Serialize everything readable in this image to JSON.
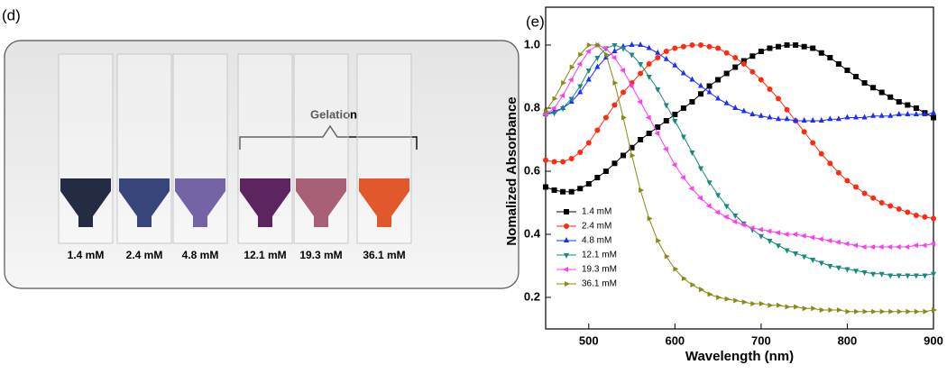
{
  "panel_d": {
    "label": "(d)",
    "annotation": "Gelation",
    "vial_labels": [
      "1.4 mM",
      "2.4 mM",
      "4.8 mM",
      "12.1 mM",
      "19.3 mM",
      "36.1 mM"
    ]
  },
  "chart_data": {
    "type": "line",
    "panel_label": "(e)",
    "x_label": "Wavelength (nm)",
    "y_label": "Nomalized Absorbance",
    "x": [
      450,
      460,
      470,
      480,
      490,
      500,
      510,
      520,
      530,
      540,
      550,
      560,
      570,
      580,
      590,
      600,
      610,
      620,
      630,
      640,
      650,
      660,
      670,
      680,
      690,
      700,
      710,
      720,
      730,
      740,
      750,
      760,
      770,
      780,
      790,
      800,
      810,
      820,
      830,
      840,
      850,
      860,
      870,
      880,
      890,
      900
    ],
    "xlim": [
      450,
      900
    ],
    "xticks": [
      500,
      600,
      700,
      800,
      900
    ],
    "ylim": [
      0.1,
      1.12
    ],
    "yticks": [
      0.2,
      0.4,
      0.6,
      0.8,
      {
        "value": 1,
        "label": "1.0"
      }
    ],
    "legend": "lower left",
    "series": [
      {
        "name": "1.4 mM",
        "color": "#000000",
        "marker": "square",
        "values": [
          0.55,
          0.54,
          0.535,
          0.535,
          0.545,
          0.56,
          0.58,
          0.6,
          0.625,
          0.65,
          0.675,
          0.7,
          0.72,
          0.74,
          0.76,
          0.78,
          0.8,
          0.82,
          0.845,
          0.87,
          0.89,
          0.91,
          0.93,
          0.95,
          0.965,
          0.98,
          0.99,
          0.995,
          1.0,
          1.0,
          0.995,
          0.99,
          0.975,
          0.96,
          0.94,
          0.92,
          0.9,
          0.88,
          0.865,
          0.85,
          0.835,
          0.82,
          0.81,
          0.8,
          0.785,
          0.77
        ]
      },
      {
        "name": "2.4 mM",
        "color": "#ff2a10",
        "marker": "circle",
        "values": [
          0.635,
          0.63,
          0.63,
          0.64,
          0.66,
          0.69,
          0.73,
          0.77,
          0.81,
          0.85,
          0.88,
          0.91,
          0.94,
          0.96,
          0.98,
          0.99,
          0.995,
          1.0,
          1.0,
          0.995,
          0.99,
          0.975,
          0.96,
          0.94,
          0.915,
          0.89,
          0.86,
          0.83,
          0.795,
          0.76,
          0.725,
          0.69,
          0.655,
          0.625,
          0.595,
          0.57,
          0.55,
          0.53,
          0.515,
          0.5,
          0.49,
          0.48,
          0.47,
          0.46,
          0.455,
          0.45
        ]
      },
      {
        "name": "4.8 mM",
        "color": "#1a2cff",
        "marker": "triangle-up",
        "values": [
          0.78,
          0.79,
          0.8,
          0.82,
          0.85,
          0.89,
          0.93,
          0.96,
          0.98,
          0.995,
          1.0,
          1.0,
          0.99,
          0.975,
          0.955,
          0.935,
          0.91,
          0.89,
          0.87,
          0.85,
          0.83,
          0.815,
          0.8,
          0.79,
          0.78,
          0.775,
          0.77,
          0.765,
          0.765,
          0.76,
          0.76,
          0.76,
          0.76,
          0.765,
          0.765,
          0.77,
          0.77,
          0.77,
          0.775,
          0.775,
          0.775,
          0.78,
          0.78,
          0.78,
          0.78,
          0.785
        ]
      },
      {
        "name": "12.1 mM",
        "color": "#168a80",
        "marker": "triangle-down",
        "values": [
          0.78,
          0.785,
          0.8,
          0.83,
          0.87,
          0.92,
          0.96,
          0.99,
          1.0,
          0.99,
          0.97,
          0.94,
          0.9,
          0.86,
          0.81,
          0.76,
          0.71,
          0.66,
          0.61,
          0.565,
          0.525,
          0.49,
          0.46,
          0.435,
          0.415,
          0.395,
          0.38,
          0.365,
          0.35,
          0.34,
          0.33,
          0.32,
          0.31,
          0.3,
          0.295,
          0.29,
          0.285,
          0.28,
          0.275,
          0.275,
          0.27,
          0.27,
          0.27,
          0.27,
          0.27,
          0.275
        ]
      },
      {
        "name": "19.3 mM",
        "color": "#ff3cf0",
        "marker": "triangle-left",
        "values": [
          0.78,
          0.8,
          0.84,
          0.89,
          0.94,
          0.98,
          1.0,
          0.99,
          0.96,
          0.92,
          0.87,
          0.82,
          0.77,
          0.72,
          0.67,
          0.62,
          0.58,
          0.545,
          0.515,
          0.49,
          0.47,
          0.455,
          0.44,
          0.43,
          0.42,
          0.415,
          0.41,
          0.405,
          0.4,
          0.4,
          0.395,
          0.39,
          0.385,
          0.38,
          0.375,
          0.37,
          0.365,
          0.36,
          0.36,
          0.36,
          0.36,
          0.36,
          0.36,
          0.365,
          0.365,
          0.37
        ]
      },
      {
        "name": "36.1 mM",
        "color": "#8a8a10",
        "marker": "triangle-right",
        "values": [
          0.79,
          0.83,
          0.88,
          0.93,
          0.97,
          1.0,
          1.0,
          0.97,
          0.88,
          0.77,
          0.65,
          0.54,
          0.45,
          0.38,
          0.33,
          0.29,
          0.26,
          0.24,
          0.225,
          0.21,
          0.2,
          0.195,
          0.19,
          0.185,
          0.18,
          0.18,
          0.175,
          0.175,
          0.17,
          0.17,
          0.165,
          0.165,
          0.16,
          0.16,
          0.16,
          0.155,
          0.155,
          0.155,
          0.155,
          0.155,
          0.155,
          0.155,
          0.155,
          0.155,
          0.155,
          0.16
        ]
      }
    ]
  }
}
